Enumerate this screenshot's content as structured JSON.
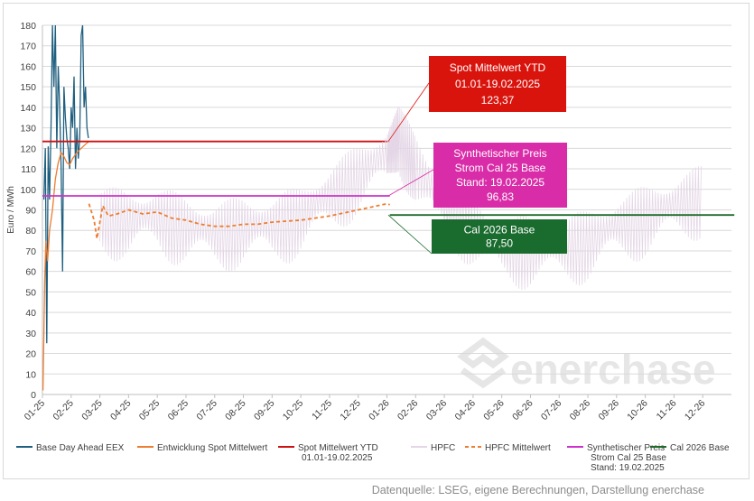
{
  "chart_data": {
    "type": "line",
    "ylabel": "Euro / MWh",
    "ylim": [
      0,
      180
    ],
    "yticks": [
      0,
      10,
      20,
      30,
      40,
      50,
      60,
      70,
      80,
      90,
      100,
      110,
      120,
      130,
      140,
      150,
      160,
      170,
      180
    ],
    "x_tick_labels": [
      "01-25",
      "02-25",
      "03-25",
      "04-25",
      "05-25",
      "06-25",
      "07-25",
      "08-25",
      "09-25",
      "10-25",
      "11-25",
      "12-25",
      "01-26",
      "02-26",
      "03-26",
      "04-26",
      "05-26",
      "06-26",
      "07-26",
      "08-26",
      "09-26",
      "10-26",
      "11-26",
      "12-26"
    ],
    "grid": true,
    "legend_position": "bottom",
    "series": [
      {
        "name": "Base Day Ahead EEX",
        "color": "#1f5f7f",
        "style": "solid",
        "x": [
          0.05,
          0.1,
          0.15,
          0.2,
          0.25,
          0.3,
          0.35,
          0.4,
          0.45,
          0.5,
          0.55,
          0.6,
          0.65,
          0.7,
          0.75,
          0.8,
          0.85,
          0.9,
          0.95,
          1.0,
          1.05,
          1.1,
          1.15,
          1.2,
          1.25,
          1.3,
          1.35,
          1.4,
          1.45,
          1.5,
          1.55,
          1.6
        ],
        "y": [
          95,
          120,
          25,
          121,
          95,
          130,
          180,
          150,
          180,
          120,
          160,
          140,
          110,
          60,
          150,
          135,
          125,
          120,
          110,
          140,
          130,
          155,
          110,
          130,
          115,
          125,
          175,
          180,
          140,
          150,
          130,
          125
        ]
      },
      {
        "name": "Entwicklung Spot Mittelwert",
        "color": "#ed7d31",
        "style": "solid",
        "x": [
          0.02,
          0.05,
          0.08,
          0.12,
          0.18,
          0.25,
          0.35,
          0.45,
          0.55,
          0.65,
          0.75,
          0.85,
          0.95,
          1.05,
          1.2,
          1.35,
          1.5,
          1.62
        ],
        "y": [
          2,
          30,
          55,
          75,
          65,
          80,
          90,
          105,
          113,
          118,
          116,
          113,
          112,
          115,
          118,
          120,
          122,
          123.4
        ]
      },
      {
        "name": "Spot Mittelwert YTD 01.01-19.02.2025",
        "color": "#cc1111",
        "style": "solid",
        "x": [
          0,
          12.1
        ],
        "y": [
          123.37,
          123.37
        ]
      },
      {
        "name": "HPFC",
        "color": "#e4d6e6",
        "style": "solid",
        "note_type": "oscillating",
        "x": [
          2.0,
          3.0,
          4.0,
          5.0,
          6.0,
          7.0,
          8.0,
          9.0,
          10.0,
          11.0,
          12.0,
          12.4,
          13.0,
          14.0,
          15.0,
          16.0,
          17.0,
          18.0,
          19.0,
          20.0,
          21.0,
          22.0,
          23.0
        ],
        "y": [
          90,
          88,
          90,
          85,
          82,
          85,
          85,
          90,
          100,
          110,
          120,
          130,
          115,
          95,
          85,
          75,
          75,
          75,
          78,
          85,
          90,
          95,
          100
        ]
      },
      {
        "name": "HPFC Mittelwert",
        "color": "#ed7d31",
        "style": "dashed",
        "x": [
          1.62,
          1.8,
          1.9,
          2.1,
          2.3,
          2.6,
          3.0,
          3.5,
          4.0,
          4.5,
          5.0,
          5.5,
          6.0,
          6.5,
          7.0,
          7.5,
          8.0,
          8.5,
          9.0,
          9.5,
          10.0,
          10.5,
          11.0,
          11.5,
          12.0,
          12.1
        ],
        "y": [
          93,
          85,
          76,
          92,
          87,
          88,
          90,
          88,
          89,
          86,
          85,
          83,
          82,
          82,
          83,
          83,
          84,
          84.5,
          85,
          86,
          87,
          88.5,
          90,
          91.5,
          93,
          92.5
        ]
      },
      {
        "name": "Synthetischer Preis Strom Cal 25 Base Stand: 19.02.2025",
        "color": "#cc33cc",
        "style": "solid",
        "x": [
          0,
          12.1
        ],
        "y": [
          96.83,
          96.83
        ]
      },
      {
        "name": "Cal 2026 Base",
        "color": "#1e6b2a",
        "style": "solid",
        "x": [
          12.1,
          24.1
        ],
        "y": [
          87.5,
          87.5
        ]
      }
    ],
    "annotations": [
      {
        "id": "spot",
        "lines": [
          "Spot Mittelwert YTD",
          "01.01-19.02.2025",
          "123,37"
        ],
        "color": "#d9140d"
      },
      {
        "id": "synth",
        "lines": [
          "Synthetischer Preis",
          "Strom Cal 25 Base",
          "Stand: 19.02.2025",
          "96,83"
        ],
        "color": "#d92ca8"
      },
      {
        "id": "cal",
        "lines": [
          "Cal 2026 Base",
          "87,50"
        ],
        "color": "#1a6b2e"
      }
    ],
    "legend": [
      {
        "label": "Base Day Ahead EEX",
        "color": "#1f5f7f",
        "style": "solid"
      },
      {
        "label": "Entwicklung Spot Mittelwert",
        "color": "#ed7d31",
        "style": "solid"
      },
      {
        "label": "Spot Mittelwert YTD\n01.01-19.02.2025",
        "color": "#cc1111",
        "style": "solid"
      },
      {
        "label": "HPFC",
        "color": "#e4d6e6",
        "style": "solid"
      },
      {
        "label": "HPFC Mittelwert",
        "color": "#ed7d31",
        "style": "dashed"
      },
      {
        "label": "Synthetischer Preis\nStrom Cal 25 Base\nStand: 19.02.2025",
        "color": "#cc33cc",
        "style": "solid"
      },
      {
        "label": "Cal 2026 Base",
        "color": "#1e6b2a",
        "style": "solid"
      }
    ],
    "watermark": "enerchase"
  },
  "source_note": "Datenquelle: LSEG, eigene Berechnungen, Darstellung enerchase"
}
